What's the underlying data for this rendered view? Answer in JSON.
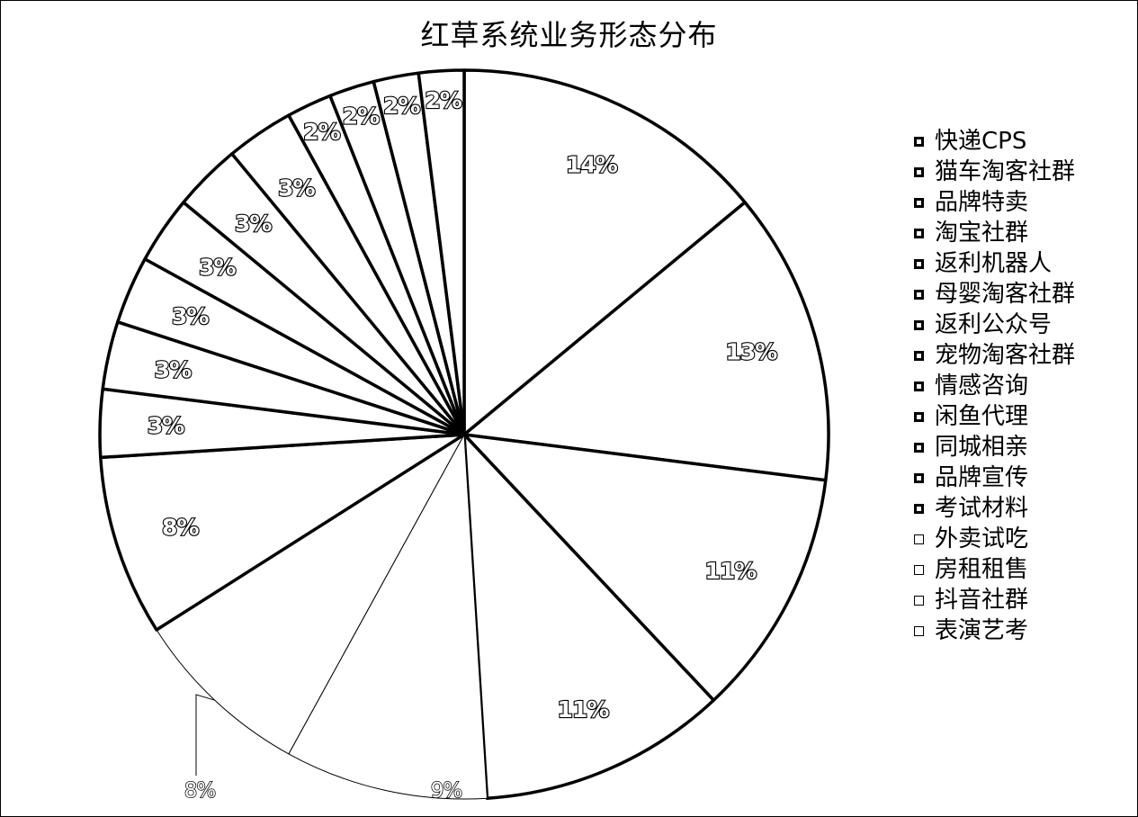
{
  "chart_data": {
    "type": "pie",
    "title": "红草系统业务形态分布",
    "legend_position": "right",
    "categories": [
      "快递CPS",
      "猫车淘客社群",
      "品牌特卖",
      "淘宝社群",
      "返利机器人",
      "母婴淘客社群",
      "返利公众号",
      "宠物淘客社群",
      "情感咨询",
      "闲鱼代理",
      "同城相亲",
      "品牌宣传",
      "考试材料",
      "外卖试吃",
      "房租租售",
      "抖音社群",
      "表演艺考"
    ],
    "values": [
      14,
      13,
      11,
      11,
      9,
      8,
      8,
      3,
      3,
      3,
      3,
      3,
      3,
      2,
      2,
      2,
      2
    ],
    "labels": [
      "14%",
      "13%",
      "11%",
      "11%",
      "9%",
      "8%",
      "8%",
      "3%",
      "3%",
      "3%",
      "3%",
      "3%",
      "3%",
      "2%",
      "2%",
      "2%",
      "2%"
    ]
  }
}
